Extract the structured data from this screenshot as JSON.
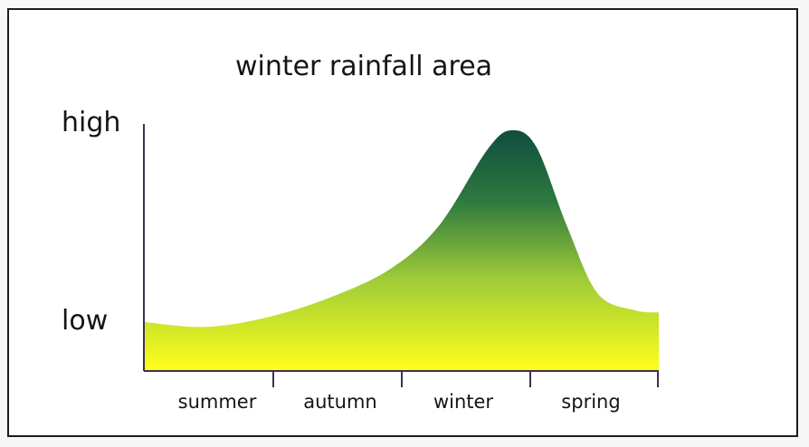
{
  "chart_data": {
    "type": "area",
    "title": "winter rainfall area",
    "xlabel": "",
    "ylabel": "",
    "categories": [
      "summer",
      "autumn",
      "winter",
      "spring"
    ],
    "y_tick_labels": [
      "low",
      "high"
    ],
    "ylim": [
      0,
      1
    ],
    "x": [
      0,
      0.5,
      1,
      1.5,
      2,
      2.4,
      2.8,
      3.0,
      3.2,
      3.45,
      3.7,
      4.0,
      4.2
    ],
    "values": [
      0.2,
      0.18,
      0.22,
      0.3,
      0.42,
      0.6,
      0.92,
      1.0,
      0.93,
      0.6,
      0.32,
      0.25,
      0.24
    ],
    "colors": {
      "high": "#0f4d3f",
      "mid": "#8dc63f",
      "low": "#ffff1a",
      "axis": "#3d3250"
    }
  }
}
